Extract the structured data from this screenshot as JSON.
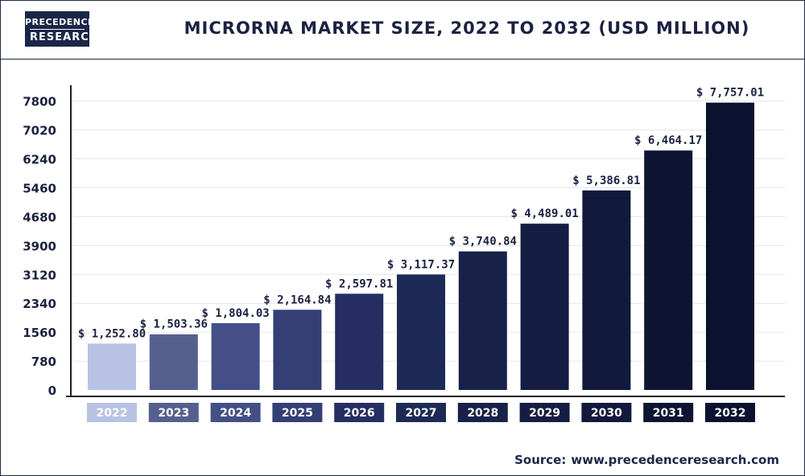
{
  "brand": {
    "line1": "PRECEDENCE",
    "line2": "RESEARCH"
  },
  "source": {
    "label": "Source:",
    "url": "www.precedenceresearch.com"
  },
  "chart_data": {
    "type": "bar",
    "title": "MICRORNA MARKET SIZE, 2022 TO 2032 (USD MILLION)",
    "xlabel": "",
    "ylabel": "",
    "categories": [
      "2022",
      "2023",
      "2024",
      "2025",
      "2026",
      "2027",
      "2028",
      "2029",
      "2030",
      "2031",
      "2032"
    ],
    "values": [
      1252.8,
      1503.36,
      1804.03,
      2164.84,
      2597.81,
      3117.37,
      3740.84,
      4489.01,
      5386.81,
      6464.17,
      7757.01
    ],
    "value_labels": [
      "$ 1,252.80",
      "$ 1,503.36",
      "$ 1,804.03",
      "$ 2,164.84",
      "$ 2,597.81",
      "$ 3,117.37",
      "$ 3,740.84",
      "$ 4,489.01",
      "$ 5,386.81",
      "$ 6,464.17",
      "$ 7,757.01"
    ],
    "bar_colors": [
      "#b8c2e3",
      "#56608f",
      "#434f86",
      "#343f74",
      "#262e63",
      "#1d2a55",
      "#182249",
      "#151d42",
      "#111a3c",
      "#0e1533",
      "#0b1230"
    ],
    "yticks": [
      0,
      780,
      1560,
      2340,
      3120,
      3900,
      4680,
      5460,
      6240,
      7020,
      7800
    ],
    "ylim": [
      0,
      7800
    ],
    "grid": true,
    "legend": "none"
  }
}
